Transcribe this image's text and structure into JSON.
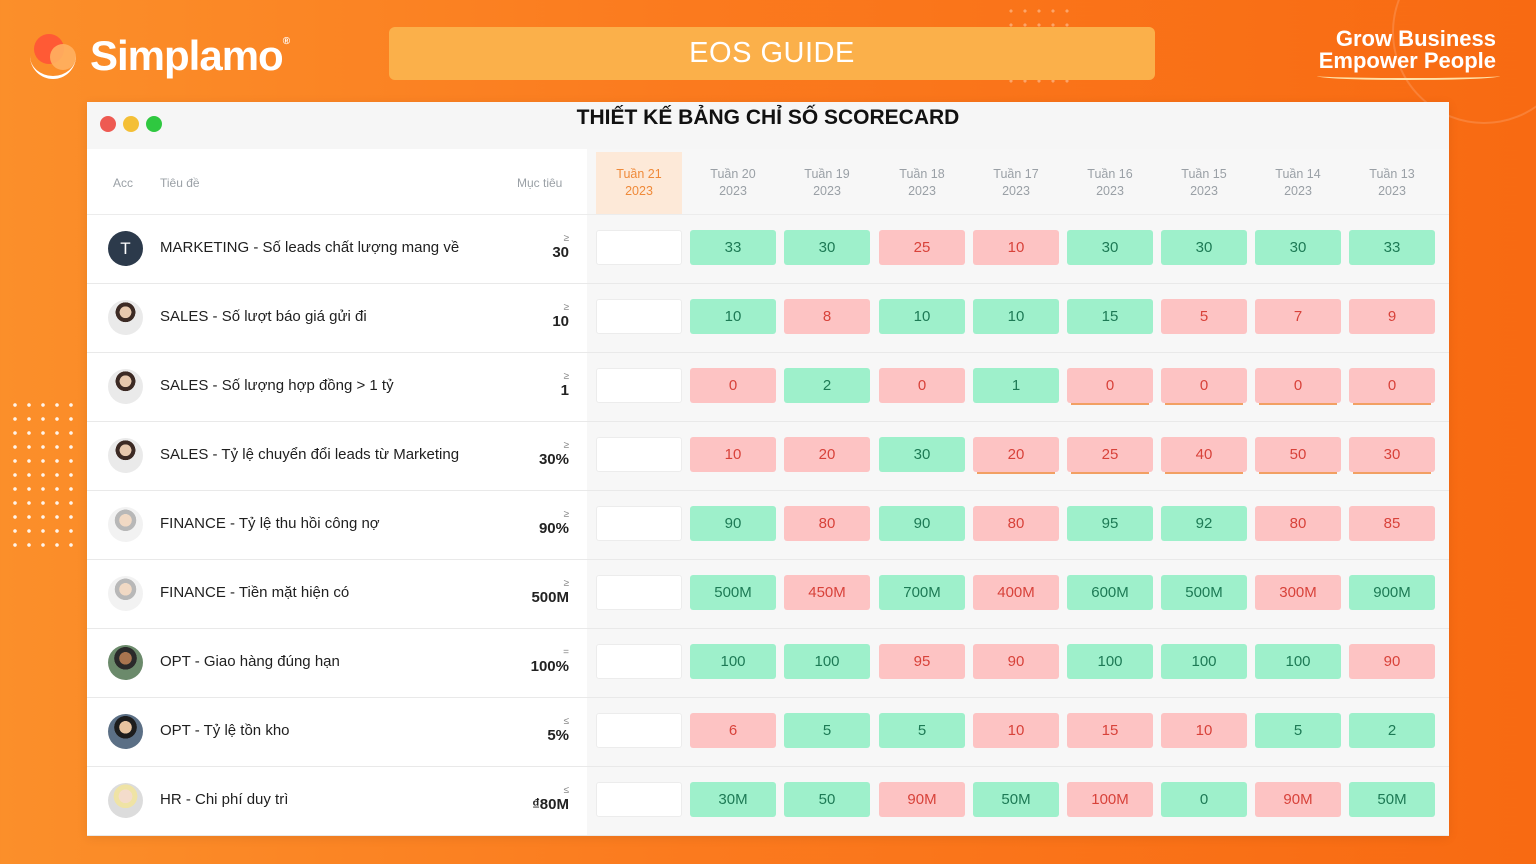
{
  "brand": {
    "name": "Simplamo",
    "reg": "®"
  },
  "banner": {
    "label": "EOS GUIDE"
  },
  "tagline": {
    "line1": "Grow Business",
    "line2": "Empower People"
  },
  "window": {
    "title": "THIẾT KẾ BẢNG CHỈ SỐ SCORECARD"
  },
  "headers": {
    "acc": "Acc",
    "title": "Tiêu đề",
    "target": "Mục tiêu"
  },
  "colors": {
    "green_cell": "#9ef0cb",
    "red_cell": "#fdc3c3",
    "current_week": "#fde9d8",
    "banner": "#fbb04a"
  },
  "weeks": [
    {
      "label": "Tuần 21",
      "year": "2023",
      "current": true
    },
    {
      "label": "Tuần 20",
      "year": "2023"
    },
    {
      "label": "Tuần 19",
      "year": "2023"
    },
    {
      "label": "Tuần 18",
      "year": "2023"
    },
    {
      "label": "Tuần 17",
      "year": "2023"
    },
    {
      "label": "Tuần 16",
      "year": "2023"
    },
    {
      "label": "Tuần 15",
      "year": "2023"
    },
    {
      "label": "Tuần 14",
      "year": "2023"
    },
    {
      "label": "Tuần 13",
      "year": "2023"
    }
  ],
  "rows": [
    {
      "avatar": "T",
      "avatar_type": "initial",
      "title": "MARKETING - Số leads chất lượng mang về",
      "op": "≥",
      "target": "30",
      "values": [
        {
          "v": "33",
          "s": "g"
        },
        {
          "v": "30",
          "s": "g"
        },
        {
          "v": "25",
          "s": "r"
        },
        {
          "v": "10",
          "s": "r"
        },
        {
          "v": "30",
          "s": "g"
        },
        {
          "v": "30",
          "s": "g"
        },
        {
          "v": "30",
          "s": "g"
        },
        {
          "v": "33",
          "s": "g"
        }
      ]
    },
    {
      "avatar": "",
      "avatar_type": "photo",
      "title": "SALES - Số lượt báo giá gửi đi",
      "op": "≥",
      "target": "10",
      "values": [
        {
          "v": "10",
          "s": "g"
        },
        {
          "v": "8",
          "s": "r"
        },
        {
          "v": "10",
          "s": "g"
        },
        {
          "v": "10",
          "s": "g"
        },
        {
          "v": "15",
          "s": "g"
        },
        {
          "v": "5",
          "s": "r"
        },
        {
          "v": "7",
          "s": "r"
        },
        {
          "v": "9",
          "s": "r"
        }
      ]
    },
    {
      "avatar": "",
      "avatar_type": "photo",
      "title": "SALES - Số lượng hợp đồng > 1 tỷ",
      "op": "≥",
      "target": "1",
      "values": [
        {
          "v": "0",
          "s": "r"
        },
        {
          "v": "2",
          "s": "g"
        },
        {
          "v": "0",
          "s": "r"
        },
        {
          "v": "1",
          "s": "g"
        },
        {
          "v": "0",
          "s": "r",
          "u": true
        },
        {
          "v": "0",
          "s": "r",
          "u": true
        },
        {
          "v": "0",
          "s": "r",
          "u": true
        },
        {
          "v": "0",
          "s": "r",
          "u": true
        }
      ]
    },
    {
      "avatar": "",
      "avatar_type": "photo",
      "title": "SALES - Tỷ lệ chuyển đổi leads từ Marketing",
      "op": "≥",
      "target": "30%",
      "values": [
        {
          "v": "10",
          "s": "r"
        },
        {
          "v": "20",
          "s": "r"
        },
        {
          "v": "30",
          "s": "g"
        },
        {
          "v": "20",
          "s": "r",
          "u": true
        },
        {
          "v": "25",
          "s": "r",
          "u": true
        },
        {
          "v": "40",
          "s": "r",
          "u": true
        },
        {
          "v": "50",
          "s": "r",
          "u": true
        },
        {
          "v": "30",
          "s": "r",
          "u": true
        }
      ]
    },
    {
      "avatar": "",
      "avatar_type": "photo2",
      "title": "FINANCE - Tỷ lệ thu hồi công nợ",
      "op": "≥",
      "target": "90%",
      "values": [
        {
          "v": "90",
          "s": "g"
        },
        {
          "v": "80",
          "s": "r"
        },
        {
          "v": "90",
          "s": "g"
        },
        {
          "v": "80",
          "s": "r"
        },
        {
          "v": "95",
          "s": "g"
        },
        {
          "v": "92",
          "s": "g"
        },
        {
          "v": "80",
          "s": "r"
        },
        {
          "v": "85",
          "s": "r"
        }
      ]
    },
    {
      "avatar": "",
      "avatar_type": "photo2",
      "title": "FINANCE - Tiền mặt hiện có",
      "op": "≥",
      "target": "500M",
      "values": [
        {
          "v": "500M",
          "s": "g"
        },
        {
          "v": "450M",
          "s": "r"
        },
        {
          "v": "700M",
          "s": "g"
        },
        {
          "v": "400M",
          "s": "r"
        },
        {
          "v": "600M",
          "s": "g"
        },
        {
          "v": "500M",
          "s": "g"
        },
        {
          "v": "300M",
          "s": "r"
        },
        {
          "v": "900M",
          "s": "g"
        }
      ]
    },
    {
      "avatar": "",
      "avatar_type": "photo3",
      "title": "OPT - Giao hàng đúng hạn",
      "op": "=",
      "target": "100%",
      "values": [
        {
          "v": "100",
          "s": "g"
        },
        {
          "v": "100",
          "s": "g"
        },
        {
          "v": "95",
          "s": "r"
        },
        {
          "v": "90",
          "s": "r"
        },
        {
          "v": "100",
          "s": "g"
        },
        {
          "v": "100",
          "s": "g"
        },
        {
          "v": "100",
          "s": "g"
        },
        {
          "v": "90",
          "s": "r"
        }
      ]
    },
    {
      "avatar": "",
      "avatar_type": "photo4",
      "title": "OPT - Tỷ lệ tồn kho",
      "op": "≤",
      "target": "5%",
      "values": [
        {
          "v": "6",
          "s": "r"
        },
        {
          "v": "5",
          "s": "g"
        },
        {
          "v": "5",
          "s": "g"
        },
        {
          "v": "10",
          "s": "r"
        },
        {
          "v": "15",
          "s": "r"
        },
        {
          "v": "10",
          "s": "r"
        },
        {
          "v": "5",
          "s": "g"
        },
        {
          "v": "2",
          "s": "g"
        }
      ]
    },
    {
      "avatar": "",
      "avatar_type": "photo5",
      "title": "HR - Chi phí duy trì",
      "op": "≤",
      "target": "₫80M",
      "values": [
        {
          "v": "30M",
          "s": "g"
        },
        {
          "v": "50",
          "s": "g"
        },
        {
          "v": "90M",
          "s": "r"
        },
        {
          "v": "50M",
          "s": "g"
        },
        {
          "v": "100M",
          "s": "r"
        },
        {
          "v": "0",
          "s": "g"
        },
        {
          "v": "90M",
          "s": "r"
        },
        {
          "v": "50M",
          "s": "g"
        }
      ]
    }
  ]
}
